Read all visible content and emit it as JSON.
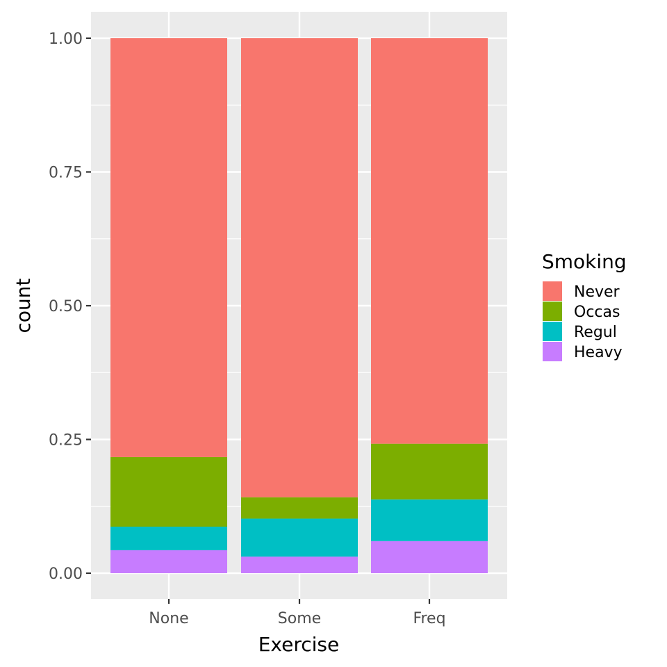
{
  "chart_data": {
    "type": "bar",
    "stacked": true,
    "xlabel": "Exercise",
    "ylabel": "count",
    "categories": [
      "None",
      "Some",
      "Freq"
    ],
    "ylim": [
      0,
      1
    ],
    "yticks": [
      0,
      0.25,
      0.5,
      0.75,
      1.0
    ],
    "ytick_labels": [
      "0.00",
      "0.25",
      "0.50",
      "0.75",
      "1.00"
    ],
    "grid": true,
    "legend": {
      "title": "Smoking",
      "position": "right"
    },
    "series": [
      {
        "name": "Never",
        "color": "#F8766D",
        "values": [
          0.783,
          0.858,
          0.758
        ]
      },
      {
        "name": "Occas",
        "color": "#7CAE00",
        "values": [
          0.13,
          0.04,
          0.104
        ]
      },
      {
        "name": "Regul",
        "color": "#00BFC4",
        "values": [
          0.044,
          0.071,
          0.078
        ]
      },
      {
        "name": "Heavy",
        "color": "#C77CFF",
        "values": [
          0.043,
          0.031,
          0.06
        ]
      }
    ]
  }
}
